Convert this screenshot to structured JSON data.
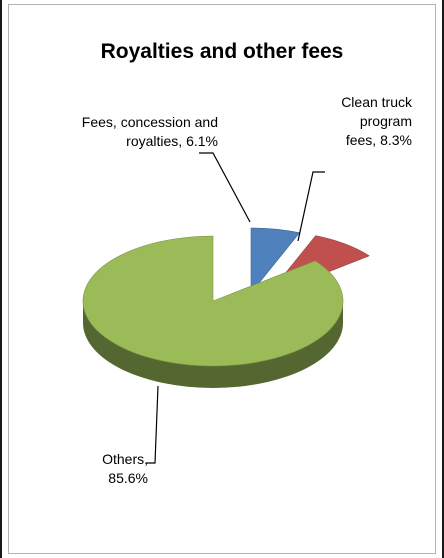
{
  "chart_data": {
    "type": "pie",
    "title": "Royalties and other fees",
    "slices": [
      {
        "label": "Fees, concession and royalties",
        "value": 6.1,
        "display": "Fees, concession and\nroyalties, 6.1%",
        "color": "#4f81bd"
      },
      {
        "label": "Clean truck program fees",
        "value": 8.3,
        "display": "Clean truck\nprogram\nfees, 8.3%",
        "color": "#c0504d"
      },
      {
        "label": "Others",
        "value": 85.6,
        "display": "Others,\n85.6%",
        "color": "#9bbb59"
      }
    ],
    "style": "3d-exploded",
    "legend": "none"
  }
}
